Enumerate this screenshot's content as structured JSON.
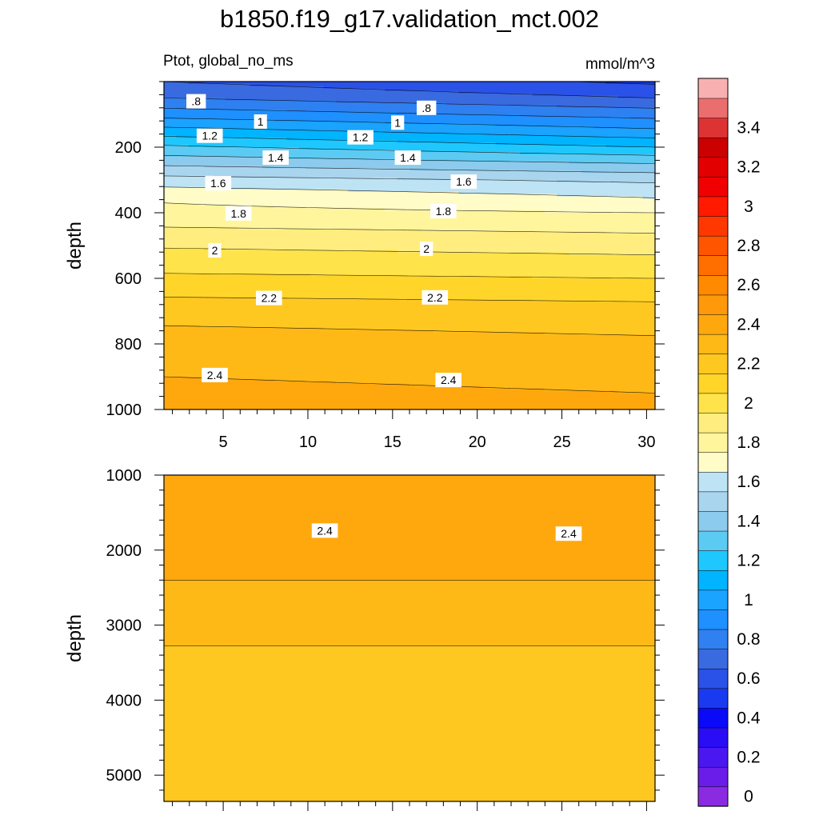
{
  "chart_data": {
    "type": "heatmap",
    "title": "b1850.f19_g17.validation_mct.002",
    "subtitle_left": "Ptot, global_no_ms",
    "subtitle_right": "mmol/m^3",
    "colorbar": {
      "levels": [
        0,
        0.1,
        0.2,
        0.3,
        0.4,
        0.5,
        0.6,
        0.7,
        0.8,
        0.9,
        1.0,
        1.1,
        1.2,
        1.3,
        1.4,
        1.5,
        1.6,
        1.7,
        1.8,
        1.9,
        2.0,
        2.1,
        2.2,
        2.3,
        2.4,
        2.5,
        2.6,
        2.7,
        2.8,
        2.9,
        3.0,
        3.1,
        3.2,
        3.3,
        3.4,
        3.5,
        3.6
      ],
      "colors": [
        "#8a2be2",
        "#6a1de8",
        "#4a17f0",
        "#2a0cf5",
        "#0a0af8",
        "#1a3af0",
        "#2a52e8",
        "#3a6ae0",
        "#2f80f0",
        "#1e90ff",
        "#1aa3ff",
        "#00b4ff",
        "#1ec8ff",
        "#5ccbf3",
        "#8ccbed",
        "#a9d5ee",
        "#bde3f4",
        "#fffcc8",
        "#fff59d",
        "#ffee7f",
        "#ffe34a",
        "#ffd52a",
        "#ffc821",
        "#ffb916",
        "#ffa80e",
        "#ff990a",
        "#ff8a00",
        "#ff6f00",
        "#ff5400",
        "#ff3800",
        "#ff1a00",
        "#f00000",
        "#e30000",
        "#cc0000",
        "#dd3333",
        "#eb6e6e",
        "#f8b0b0"
      ],
      "tick_labels": [
        "0",
        "0.2",
        "0.4",
        "0.6",
        "0.8",
        "1",
        "1.2",
        "1.4",
        "1.6",
        "1.8",
        "2",
        "2.2",
        "2.4",
        "2.6",
        "2.8",
        "3",
        "3.2",
        "3.4"
      ],
      "tick_values": [
        0,
        0.2,
        0.4,
        0.6,
        0.8,
        1.0,
        1.2,
        1.4,
        1.6,
        1.8,
        2.0,
        2.2,
        2.4,
        2.6,
        2.8,
        3.0,
        3.2,
        3.4
      ]
    },
    "x": {
      "range": [
        1.5,
        30.5
      ],
      "tick_values": [
        5,
        10,
        15,
        20,
        25,
        30
      ],
      "tick_labels": [
        "5",
        "10",
        "15",
        "20",
        "25",
        "30"
      ]
    },
    "panels": [
      {
        "name": "upper",
        "ylabel": "depth",
        "yrange": [
          0,
          1000
        ],
        "y_tick_values": [
          200,
          400,
          600,
          800,
          1000
        ],
        "y_tick_labels": [
          "200",
          "400",
          "600",
          "800",
          "1000"
        ],
        "show_x_labels": true,
        "profile_depths": [
          0,
          50,
          100,
          150,
          200,
          250,
          300,
          350,
          400,
          500,
          600,
          700,
          800,
          900,
          1000
        ],
        "profile_left": [
          0.7,
          0.8,
          0.96,
          1.14,
          1.32,
          1.48,
          1.64,
          1.78,
          1.83,
          1.99,
          2.12,
          2.26,
          2.35,
          2.4,
          2.42
        ],
        "profile_right": [
          0.58,
          0.7,
          0.86,
          1.02,
          1.2,
          1.4,
          1.58,
          1.69,
          1.8,
          1.96,
          2.1,
          2.24,
          2.32,
          2.39,
          2.41
        ],
        "contour_labels": [
          {
            "text": ".8",
            "x": 3.4,
            "d": 60
          },
          {
            "text": ".8",
            "x": 17.0,
            "d": 80
          },
          {
            "text": "1",
            "x": 7.2,
            "d": 122
          },
          {
            "text": "1",
            "x": 15.3,
            "d": 125
          },
          {
            "text": "1.2",
            "x": 4.2,
            "d": 165
          },
          {
            "text": "1.2",
            "x": 13.1,
            "d": 170
          },
          {
            "text": "1.4",
            "x": 8.1,
            "d": 232
          },
          {
            "text": "1.4",
            "x": 15.9,
            "d": 232
          },
          {
            "text": "1.6",
            "x": 4.7,
            "d": 310
          },
          {
            "text": "1.6",
            "x": 19.2,
            "d": 305
          },
          {
            "text": "1.8",
            "x": 5.9,
            "d": 402
          },
          {
            "text": "1.8",
            "x": 18.0,
            "d": 395
          },
          {
            "text": "2",
            "x": 4.5,
            "d": 515
          },
          {
            "text": "2",
            "x": 17.0,
            "d": 510
          },
          {
            "text": "2.2",
            "x": 7.7,
            "d": 660
          },
          {
            "text": "2.2",
            "x": 17.5,
            "d": 658
          },
          {
            "text": "2.4",
            "x": 4.5,
            "d": 895
          },
          {
            "text": "2.4",
            "x": 18.3,
            "d": 910
          }
        ]
      },
      {
        "name": "lower",
        "ylabel": "depth",
        "yrange": [
          1000,
          5350
        ],
        "y_tick_values": [
          1000,
          2000,
          3000,
          4000,
          5000
        ],
        "y_tick_labels": [
          "1000",
          "2000",
          "3000",
          "4000",
          "5000"
        ],
        "show_x_labels": false,
        "profile_depths": [
          1000,
          1700,
          2400,
          2500,
          3500,
          5350
        ],
        "profile_left": [
          2.43,
          2.41,
          2.4,
          2.37,
          2.28,
          2.25
        ],
        "profile_right": [
          2.45,
          2.42,
          2.4,
          2.37,
          2.28,
          2.25
        ],
        "contour_labels": [
          {
            "text": "2.4",
            "x": 11.0,
            "d": 1740
          },
          {
            "text": "2.4",
            "x": 25.4,
            "d": 1780
          }
        ]
      }
    ]
  }
}
